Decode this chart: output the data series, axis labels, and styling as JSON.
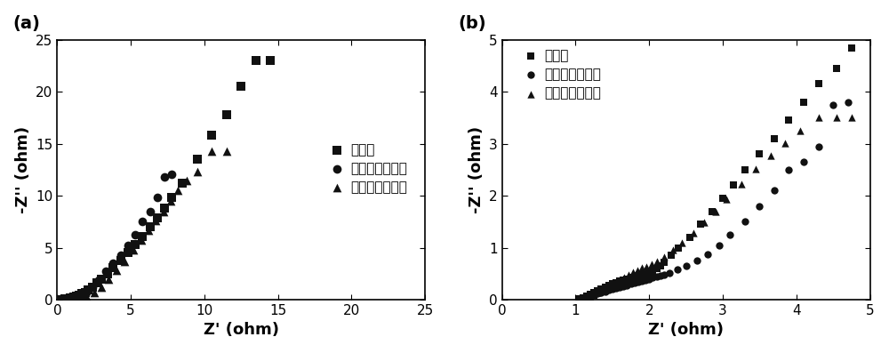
{
  "fig_width": 10.0,
  "fig_height": 3.97,
  "panel_a": {
    "label": "(a)",
    "xlim": [
      0,
      25
    ],
    "ylim": [
      0,
      25
    ],
    "xticks": [
      0,
      5,
      10,
      15,
      20,
      25
    ],
    "yticks": [
      0,
      5,
      10,
      15,
      20,
      25
    ],
    "xlabel": "Z' (ohm)",
    "ylabel": "-Z'' (ohm)",
    "series1_label": "未活化",
    "series2_label": "正电位区间活化",
    "series3_label": "双电位区间活化",
    "series1_x": [
      0.3,
      0.5,
      0.7,
      0.9,
      1.1,
      1.3,
      1.5,
      1.7,
      1.9,
      2.1,
      2.4,
      2.7,
      3.0,
      3.4,
      3.8,
      4.3,
      4.8,
      5.3,
      5.8,
      6.3,
      6.8,
      7.3,
      7.8,
      8.5,
      9.5,
      10.5,
      11.5,
      12.5,
      13.5,
      14.5
    ],
    "series1_y": [
      0.02,
      0.05,
      0.1,
      0.15,
      0.22,
      0.32,
      0.42,
      0.55,
      0.7,
      0.9,
      1.2,
      1.6,
      2.0,
      2.5,
      3.1,
      3.8,
      4.5,
      5.3,
      6.1,
      7.0,
      7.9,
      8.8,
      9.8,
      11.2,
      13.5,
      15.8,
      17.8,
      20.5,
      23.0,
      23.0
    ],
    "series2_x": [
      0.8,
      1.0,
      1.3,
      1.6,
      2.0,
      2.4,
      2.8,
      3.3,
      3.8,
      4.3,
      4.8,
      5.3,
      5.8,
      6.3,
      6.8,
      7.3,
      7.8
    ],
    "series2_y": [
      0.02,
      0.05,
      0.15,
      0.35,
      0.7,
      1.2,
      1.9,
      2.7,
      3.5,
      4.3,
      5.2,
      6.2,
      7.5,
      8.5,
      9.8,
      11.8,
      12.1
    ],
    "series3_x": [
      1.2,
      1.6,
      2.0,
      2.5,
      3.0,
      3.5,
      4.0,
      4.6,
      5.2,
      5.7,
      6.2,
      6.7,
      7.2,
      7.7,
      8.2,
      8.8,
      9.5,
      10.5,
      11.5
    ],
    "series3_y": [
      0.02,
      0.1,
      0.3,
      0.7,
      1.2,
      2.0,
      2.8,
      3.7,
      4.8,
      5.7,
      6.7,
      7.6,
      8.5,
      9.5,
      10.5,
      11.5,
      12.3,
      14.3,
      14.3
    ]
  },
  "panel_b": {
    "label": "(b)",
    "xlim": [
      0,
      5
    ],
    "ylim": [
      0,
      5
    ],
    "xticks": [
      0,
      1,
      2,
      3,
      4,
      5
    ],
    "yticks": [
      0,
      1,
      2,
      3,
      4,
      5
    ],
    "xlabel": "Z' (ohm)",
    "ylabel": "-Z'' (ohm)",
    "series1_label": "未活化",
    "series2_label": "正电位区间活化",
    "series3_label": "双电位区间活化",
    "series1_x": [
      1.05,
      1.1,
      1.15,
      1.2,
      1.25,
      1.3,
      1.35,
      1.4,
      1.45,
      1.5,
      1.55,
      1.6,
      1.65,
      1.7,
      1.75,
      1.8,
      1.85,
      1.9,
      1.95,
      2.0,
      2.05,
      2.1,
      2.15,
      2.2,
      2.3,
      2.4,
      2.55,
      2.7,
      2.85,
      3.0,
      3.15,
      3.3,
      3.5,
      3.7,
      3.9,
      4.1,
      4.3,
      4.55,
      4.75
    ],
    "series1_y": [
      0.02,
      0.04,
      0.07,
      0.1,
      0.13,
      0.17,
      0.2,
      0.24,
      0.27,
      0.3,
      0.33,
      0.36,
      0.38,
      0.4,
      0.42,
      0.44,
      0.46,
      0.47,
      0.48,
      0.5,
      0.55,
      0.6,
      0.65,
      0.72,
      0.85,
      1.0,
      1.2,
      1.45,
      1.7,
      1.95,
      2.2,
      2.5,
      2.8,
      3.1,
      3.45,
      3.8,
      4.15,
      4.45,
      4.85
    ],
    "series2_x": [
      1.1,
      1.12,
      1.15,
      1.18,
      1.22,
      1.26,
      1.3,
      1.35,
      1.4,
      1.45,
      1.5,
      1.55,
      1.6,
      1.65,
      1.7,
      1.75,
      1.8,
      1.85,
      1.9,
      1.95,
      2.0,
      2.05,
      2.1,
      2.15,
      2.2,
      2.28,
      2.38,
      2.5,
      2.65,
      2.8,
      2.95,
      3.1,
      3.3,
      3.5,
      3.7,
      3.9,
      4.1,
      4.3,
      4.5,
      4.7
    ],
    "series2_y": [
      0.01,
      0.02,
      0.04,
      0.06,
      0.08,
      0.1,
      0.12,
      0.14,
      0.16,
      0.18,
      0.2,
      0.22,
      0.24,
      0.26,
      0.28,
      0.3,
      0.32,
      0.34,
      0.36,
      0.38,
      0.4,
      0.42,
      0.44,
      0.46,
      0.48,
      0.52,
      0.58,
      0.65,
      0.75,
      0.88,
      1.05,
      1.25,
      1.5,
      1.8,
      2.1,
      2.5,
      2.65,
      2.95,
      3.75,
      3.8
    ],
    "series3_x": [
      1.15,
      1.2,
      1.25,
      1.3,
      1.36,
      1.42,
      1.48,
      1.54,
      1.6,
      1.66,
      1.72,
      1.78,
      1.84,
      1.9,
      1.96,
      2.03,
      2.1,
      2.2,
      2.32,
      2.45,
      2.6,
      2.75,
      2.9,
      3.05,
      3.25,
      3.45,
      3.65,
      3.85,
      4.05,
      4.3,
      4.55,
      4.75
    ],
    "series3_y": [
      0.02,
      0.05,
      0.09,
      0.13,
      0.18,
      0.23,
      0.28,
      0.33,
      0.38,
      0.43,
      0.48,
      0.53,
      0.57,
      0.61,
      0.64,
      0.68,
      0.73,
      0.82,
      0.95,
      1.1,
      1.28,
      1.48,
      1.7,
      1.93,
      2.22,
      2.52,
      2.78,
      3.02,
      3.25,
      3.5,
      3.5,
      3.5
    ]
  },
  "marker_size_a": 7,
  "marker_size_b": 6,
  "color": "#111111",
  "font_size_label": 13,
  "font_size_tick": 11,
  "font_size_legend": 11,
  "font_size_panel": 14
}
